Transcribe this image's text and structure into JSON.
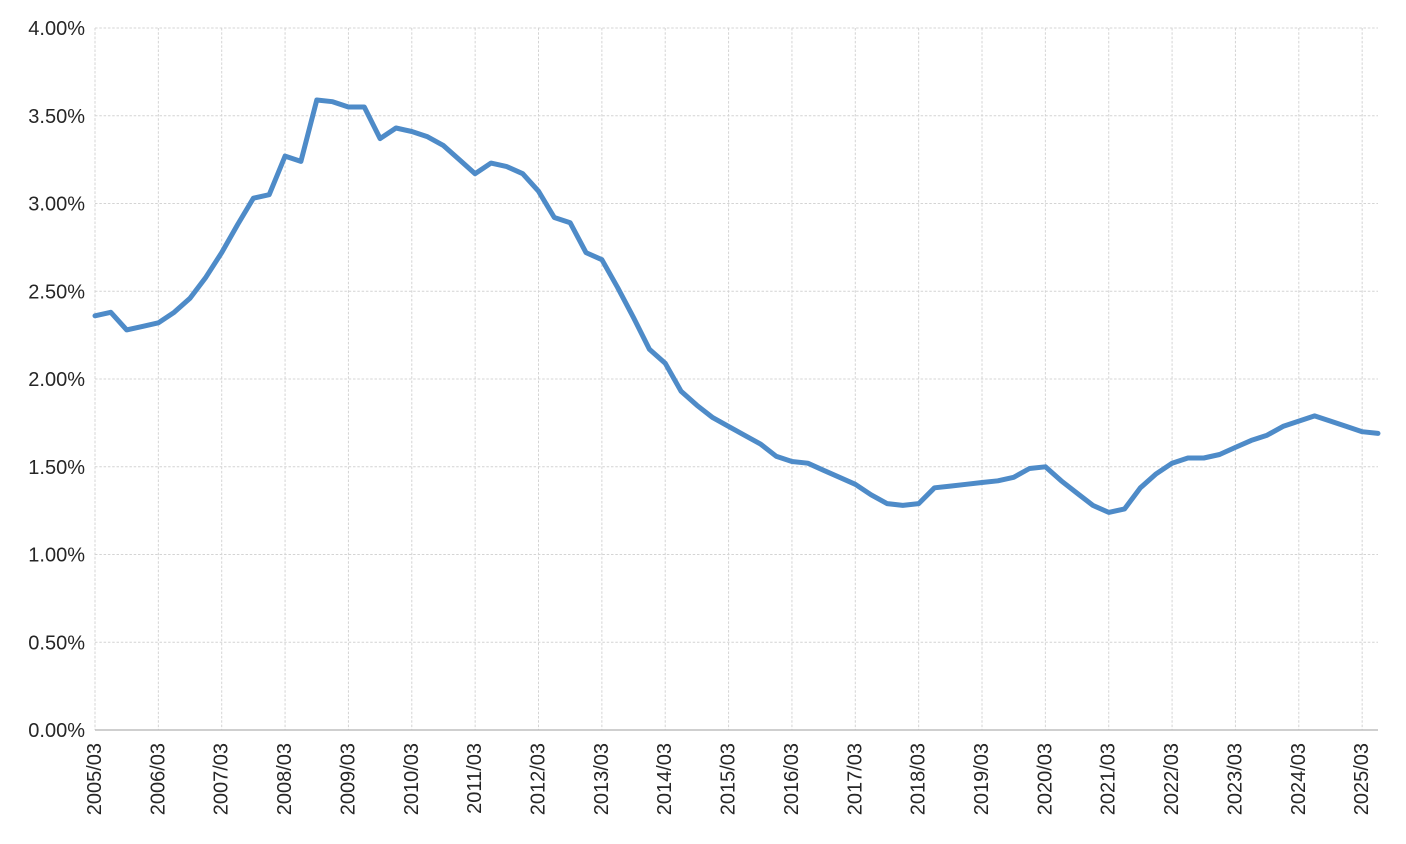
{
  "chart_data": {
    "type": "line",
    "title": "",
    "legend": "none",
    "grid": true,
    "ylim": [
      0,
      4
    ],
    "y_tick_step_percent": 0.5,
    "y_ticks": [
      "0.00%",
      "0.50%",
      "1.00%",
      "1.50%",
      "2.00%",
      "2.50%",
      "3.00%",
      "3.50%",
      "4.00%"
    ],
    "x_tick_labels": [
      "2005/03",
      "2006/03",
      "2007/03",
      "2008/03",
      "2009/03",
      "2010/03",
      "2011/03",
      "2012/03",
      "2013/03",
      "2014/03",
      "2015/03",
      "2016/03",
      "2017/03",
      "2018/03",
      "2019/03",
      "2020/03",
      "2021/03",
      "2022/03",
      "2023/03",
      "2024/03",
      "2025/03"
    ],
    "x_labeled_every": 4,
    "x_label_rotation_degrees": -90,
    "x": [
      "2005/03",
      "2005/06",
      "2005/09",
      "2005/12",
      "2006/03",
      "2006/06",
      "2006/09",
      "2006/12",
      "2007/03",
      "2007/06",
      "2007/09",
      "2007/12",
      "2008/03",
      "2008/06",
      "2008/09",
      "2008/12",
      "2009/03",
      "2009/06",
      "2009/09",
      "2009/12",
      "2010/03",
      "2010/06",
      "2010/09",
      "2010/12",
      "2011/03",
      "2011/06",
      "2011/09",
      "2011/12",
      "2012/03",
      "2012/06",
      "2012/09",
      "2012/12",
      "2013/03",
      "2013/06",
      "2013/09",
      "2013/12",
      "2014/03",
      "2014/06",
      "2014/09",
      "2014/12",
      "2015/03",
      "2015/06",
      "2015/09",
      "2015/12",
      "2016/03",
      "2016/06",
      "2016/09",
      "2016/12",
      "2017/03",
      "2017/06",
      "2017/09",
      "2017/12",
      "2018/03",
      "2018/06",
      "2018/09",
      "2018/12",
      "2019/03",
      "2019/06",
      "2019/09",
      "2019/12",
      "2020/03",
      "2020/06",
      "2020/09",
      "2020/12",
      "2021/03",
      "2021/06",
      "2021/09",
      "2021/12",
      "2022/03",
      "2022/06",
      "2022/09",
      "2022/12",
      "2023/03",
      "2023/06",
      "2023/09",
      "2023/12",
      "2024/03",
      "2024/06",
      "2024/09",
      "2024/12",
      "2025/03",
      "2025/06"
    ],
    "values_percent": [
      2.36,
      2.38,
      2.28,
      2.3,
      2.32,
      2.38,
      2.46,
      2.58,
      2.72,
      2.88,
      3.03,
      3.05,
      3.27,
      3.24,
      3.59,
      3.58,
      3.55,
      3.55,
      3.37,
      3.43,
      3.41,
      3.38,
      3.33,
      3.25,
      3.17,
      3.23,
      3.21,
      3.17,
      3.07,
      2.92,
      2.89,
      2.72,
      2.68,
      2.52,
      2.35,
      2.17,
      2.09,
      1.93,
      1.85,
      1.78,
      1.73,
      1.68,
      1.63,
      1.56,
      1.53,
      1.52,
      1.48,
      1.44,
      1.4,
      1.34,
      1.29,
      1.28,
      1.29,
      1.38,
      1.39,
      1.4,
      1.41,
      1.42,
      1.44,
      1.49,
      1.5,
      1.42,
      1.35,
      1.28,
      1.24,
      1.26,
      1.38,
      1.46,
      1.52,
      1.55,
      1.55,
      1.57,
      1.61,
      1.65,
      1.68,
      1.73,
      1.76,
      1.79,
      1.76,
      1.73,
      1.7,
      1.69
    ],
    "colors": {
      "line": "#4E8BC8",
      "gridline": "#D4D4D4",
      "axis_line": "#BFBFBF",
      "tick_label": "#262626",
      "background": "#FFFFFF"
    }
  }
}
